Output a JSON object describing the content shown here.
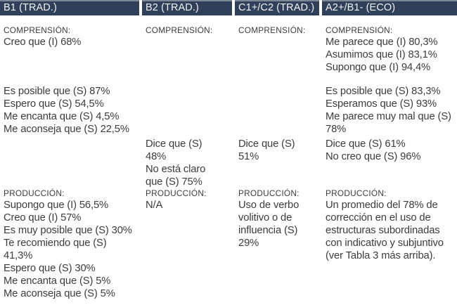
{
  "colors": {
    "header-bg": "#31405A",
    "header-top-line": "#7C8797",
    "header-text": "#F1F3F6",
    "body-text": "#3C3C3C"
  },
  "table": {
    "columns": [
      {
        "header": "B1 (TRAD.)",
        "comprension": {
          "label": "COMPRENSIÓN:",
          "intro": "Creo que (I) 68%",
          "block2": "Es posible que (S) 87%\nEspero que (S) 54,5%\nMe encanta que (S) 4,5%\nMe aconseja que (S) 22,5%",
          "block3": ""
        },
        "produccion": {
          "label": "PRODUCCIÓN:",
          "text": "Supongo que (I) 56,5%\nCreo que (I) 57%\nEs muy posible que (S) 30%\nTe recomiendo que (S)\n41,3%\nEspero que (S) 30%\nMe encanta que (S) 5%\nMe aconseja que (S) 5%"
        }
      },
      {
        "header": "B2 (TRAD.)",
        "comprension": {
          "label": "COMPRENSIÓN:",
          "intro": "",
          "block2": "",
          "block3": "Dice que (S)\n48%\nNo está claro\nque (S) 75%"
        },
        "produccion": {
          "label": "PRODUCCIÓN:",
          "text": "N/A"
        }
      },
      {
        "header": "C1+/C2 (TRAD.)",
        "comprension": {
          "label": "COMPRENSIÓN:",
          "intro": "",
          "block2": "",
          "block3": "Dice que (S)\n51%"
        },
        "produccion": {
          "label": "PRODUCCIÓN:",
          "text": "Uso de verbo\nvolitivo o de\ninfluencia (S)\n29%"
        }
      },
      {
        "header": "A2+/B1- (ECO)",
        "comprension": {
          "label": "COMPRENSIÓN:",
          "intro": "Me parece que (I) 80,3%\nAsumimos que (I) 83,1%\nSupongo que (I) 94,4%",
          "block2": "Es posible que (S) 83,3%\nEsperamos que (S) 93%\nMe parece muy mal que (S)\n78%",
          "block3": "Dice que (S) 61%\nNo creo que (S) 96%"
        },
        "produccion": {
          "label": "PRODUCCIÓN:",
          "text": "Un promedio del 78% de\ncorrección en el uso de\nestructuras subordinadas\ncon indicativo y subjuntivo\n(ver Tabla 3 más arriba)."
        }
      }
    ]
  }
}
